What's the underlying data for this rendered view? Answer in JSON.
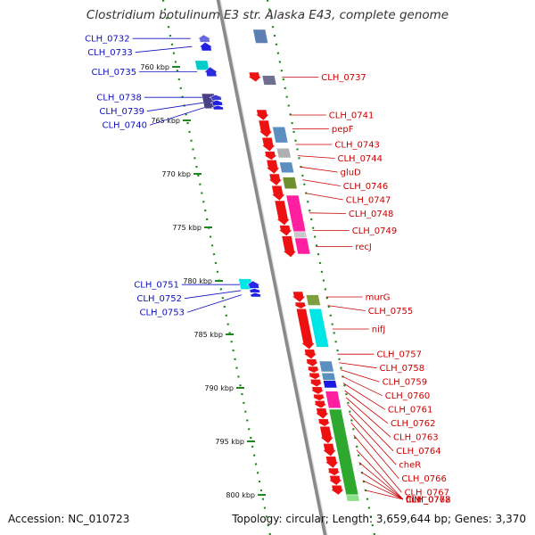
{
  "title": "Clostridium botulinum E3 str. Alaska E43, complete genome",
  "footer": {
    "accession": "Accession: NC_010723",
    "topology": "Topology: circular; Length: 3,659,644 bp; Genes: 3,370"
  },
  "scale": {
    "unit": "kbp",
    "ticks": [
      {
        "label": "760 kbp",
        "pos": 760
      },
      {
        "label": "765 kbp",
        "pos": 765
      },
      {
        "label": "770 kbp",
        "pos": 770
      },
      {
        "label": "775 kbp",
        "pos": 775
      },
      {
        "label": "780 kbp",
        "pos": 780
      },
      {
        "label": "785 kbp",
        "pos": 785
      },
      {
        "label": "790 kbp",
        "pos": 790
      },
      {
        "label": "795 kbp",
        "pos": 795
      },
      {
        "label": "800 kbp",
        "pos": 800
      }
    ]
  },
  "genes_left_strand": [
    {
      "label": "CLH_0732",
      "pos": 757.0,
      "len": 0.7,
      "color": "#6a6adf"
    },
    {
      "label": "CLH_0733",
      "pos": 757.7,
      "len": 0.8,
      "color": "#2020e0"
    },
    {
      "label": "CLH_0735",
      "pos": 760.0,
      "len": 0.9,
      "color": "#2a2ae0"
    },
    {
      "label": "CLH_0738",
      "pos": 762.6,
      "len": 0.5,
      "color": "#3a3ad0"
    },
    {
      "label": "CLH_0739",
      "pos": 763.1,
      "len": 0.5,
      "color": "#2020e0"
    },
    {
      "label": "CLH_0740",
      "pos": 763.6,
      "len": 0.4,
      "color": "#2020e0"
    },
    {
      "label": "CLH_0751",
      "pos": 780.0,
      "len": 0.7,
      "color": "#2828e8"
    },
    {
      "label": "CLH_0752",
      "pos": 780.7,
      "len": 0.4,
      "color": "#2020e0"
    },
    {
      "label": "CLH_0753",
      "pos": 781.1,
      "len": 0.4,
      "color": "#2020e0"
    }
  ],
  "genes_right_strand": [
    {
      "label": "CLH_0737",
      "pos": 760.5,
      "len": 0.9,
      "color": "#ee1111"
    },
    {
      "label": "CLH_0741",
      "pos": 764.0,
      "len": 1.0,
      "color": "#ee1111"
    },
    {
      "label": "pepF",
      "pos": 765.0,
      "len": 1.6,
      "color": "#ee1111"
    },
    {
      "label": "CLH_0743",
      "pos": 766.6,
      "len": 1.3,
      "color": "#ee1111"
    },
    {
      "label": "CLH_0744",
      "pos": 767.9,
      "len": 0.8,
      "color": "#ee1111"
    },
    {
      "label": "gluD",
      "pos": 768.7,
      "len": 1.3,
      "color": "#ee1111"
    },
    {
      "label": "CLH_0746",
      "pos": 770.0,
      "len": 1.1,
      "color": "#ee1111"
    },
    {
      "label": "CLH_0747",
      "pos": 771.1,
      "len": 1.4,
      "color": "#ee1111"
    },
    {
      "label": "CLH_0748",
      "pos": 772.5,
      "len": 2.3,
      "color": "#ee1111"
    },
    {
      "label": "CLH_0749",
      "pos": 774.8,
      "len": 1.0,
      "color": "#ee1111"
    },
    {
      "label": "recJ",
      "pos": 775.8,
      "len": 2.0,
      "color": "#ee1111"
    },
    {
      "label": "murG",
      "pos": 781.0,
      "len": 1.0,
      "color": "#ee1111"
    },
    {
      "label": "CLH_0755",
      "pos": 782.0,
      "len": 0.6,
      "color": "#ee1111"
    },
    {
      "label": "nifJ",
      "pos": 782.6,
      "len": 3.8,
      "color": "#ee1111"
    },
    {
      "label": "CLH_0757",
      "pos": 786.4,
      "len": 0.9,
      "color": "#ee1111"
    },
    {
      "label": "CLH_0758",
      "pos": 787.3,
      "len": 0.7,
      "color": "#ee1111"
    },
    {
      "label": "CLH_0759",
      "pos": 788.0,
      "len": 0.6,
      "color": "#ee1111"
    },
    {
      "label": "CLH_0760",
      "pos": 788.6,
      "len": 0.6,
      "color": "#ee1111"
    },
    {
      "label": "CLH_0761",
      "pos": 789.2,
      "len": 0.7,
      "color": "#ee1111"
    },
    {
      "label": "CLH_0762",
      "pos": 789.9,
      "len": 0.7,
      "color": "#ee1111"
    },
    {
      "label": "CLH_0763",
      "pos": 790.6,
      "len": 0.6,
      "color": "#ee1111"
    },
    {
      "label": "CLH_0764",
      "pos": 791.2,
      "len": 0.7,
      "color": "#ee1111"
    },
    {
      "label": "cheR",
      "pos": 791.9,
      "len": 1.0,
      "color": "#ee1111"
    },
    {
      "label": "CLH_0766",
      "pos": 792.9,
      "len": 0.7,
      "color": "#ee1111"
    },
    {
      "label": "CLH_0767",
      "pos": 793.6,
      "len": 1.6,
      "color": "#ee1111"
    },
    {
      "label": "CLH_0768",
      "pos": 795.2,
      "len": 1.2,
      "color": "#ee1111"
    },
    {
      "label": "fliM",
      "pos": 796.4,
      "len": 1.1,
      "color": "#ee1111"
    },
    {
      "label": "fliN",
      "pos": 797.5,
      "len": 0.7,
      "color": "#ee1111"
    },
    {
      "label": "CLH_0772",
      "pos": 798.2,
      "len": 0.9,
      "color": "#ee1111"
    },
    {
      "label": "CLH_0773",
      "pos": 799.1,
      "len": 0.9,
      "color": "#ee1111"
    }
  ],
  "feature_blocks": [
    {
      "pos": 756.5,
      "len": 1.3,
      "color": "#5b7fb2",
      "track": "plus"
    },
    {
      "pos": 759.4,
      "len": 0.9,
      "color": "#00cccc",
      "track": "minus"
    },
    {
      "pos": 760.8,
      "len": 0.9,
      "color": "#6f6f8f",
      "track": "plus"
    },
    {
      "pos": 762.5,
      "len": 1.4,
      "color": "#4b3f8a",
      "track": "minus"
    },
    {
      "pos": 765.6,
      "len": 1.5,
      "color": "#5b8fc0",
      "track": "plus"
    },
    {
      "pos": 767.6,
      "len": 0.9,
      "color": "#b0b0b0",
      "track": "plus"
    },
    {
      "pos": 768.9,
      "len": 1.0,
      "color": "#5b8fc0",
      "track": "plus"
    },
    {
      "pos": 770.3,
      "len": 1.1,
      "color": "#6f8f2f",
      "track": "plus"
    },
    {
      "pos": 772.0,
      "len": 3.6,
      "color": "#ff1fa0",
      "track": "plus"
    },
    {
      "pos": 775.4,
      "len": 0.6,
      "color": "#c8c8c8",
      "track": "plus"
    },
    {
      "pos": 776.0,
      "len": 1.5,
      "color": "#ff1fa0",
      "track": "plus"
    },
    {
      "pos": 779.8,
      "len": 1.0,
      "color": "#00e5e5",
      "track": "minus"
    },
    {
      "pos": 781.3,
      "len": 1.0,
      "color": "#7f9f3f",
      "track": "plus"
    },
    {
      "pos": 782.6,
      "len": 3.6,
      "color": "#00e5e5",
      "track": "plus"
    },
    {
      "pos": 787.5,
      "len": 1.0,
      "color": "#5b8fc0",
      "track": "plus"
    },
    {
      "pos": 788.6,
      "len": 0.7,
      "color": "#5b8fc0",
      "track": "plus"
    },
    {
      "pos": 789.3,
      "len": 0.7,
      "color": "#1a1ae0",
      "track": "plus"
    },
    {
      "pos": 790.3,
      "len": 1.6,
      "color": "#ff1fa0",
      "track": "plus"
    },
    {
      "pos": 792.0,
      "len": 8.0,
      "color": "#2ea82e",
      "track": "plus"
    },
    {
      "pos": 800.0,
      "len": 0.6,
      "color": "#88e288",
      "track": "plus"
    }
  ],
  "colors": {
    "backbone": "#8a8a8a",
    "gc_dots": "#1a8a1a",
    "left_label": "#1010c0",
    "right_label": "#cc0000",
    "left_gene": "#2020e0",
    "right_gene": "#ee1111"
  }
}
